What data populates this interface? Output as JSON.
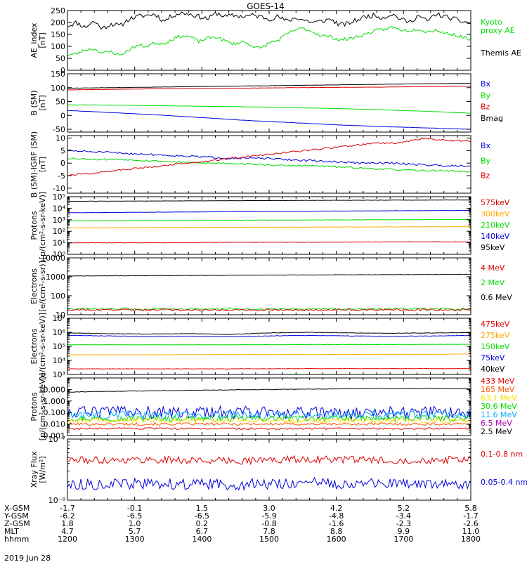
{
  "title": "GOES-14",
  "date_label": "2019 Jun 28",
  "chart_data": [
    {
      "id": "ae",
      "type": "line",
      "ylabel_lines": [
        "AE_index",
        "[nT]"
      ],
      "ylim": [
        0,
        250
      ],
      "log": false,
      "ticks": [
        0,
        50,
        100,
        150,
        200,
        250
      ],
      "tick_labels": [
        "0",
        "50",
        "100",
        "150",
        "200",
        "250"
      ],
      "legend": [
        {
          "label": "Kyoto",
          "color": "#00dd00"
        },
        {
          "label": "proxy AE",
          "color": "#00dd00"
        },
        {
          "label": "Themis AE",
          "color": "#000000"
        }
      ],
      "series": [
        {
          "color": "#000000",
          "noise": 10,
          "seed": 11,
          "values": [
            185,
            200,
            180,
            205,
            175,
            195,
            185,
            215,
            225,
            230,
            235,
            205,
            230,
            240,
            235,
            225,
            215,
            240,
            225,
            230,
            225,
            230,
            225,
            215,
            225,
            205,
            220,
            210,
            200,
            205,
            215,
            190,
            195,
            210,
            225,
            230,
            220,
            235,
            215,
            200,
            230,
            205,
            235,
            225,
            215,
            205,
            195
          ]
        },
        {
          "color": "#00dd00",
          "noise": 7,
          "seed": 23,
          "values": [
            65,
            68,
            85,
            90,
            72,
            78,
            62,
            85,
            105,
            100,
            115,
            112,
            130,
            145,
            140,
            120,
            135,
            140,
            122,
            110,
            120,
            105,
            90,
            115,
            125,
            150,
            170,
            175,
            160,
            145,
            140,
            128,
            130,
            140,
            150,
            165,
            170,
            180,
            170,
            165,
            175,
            160,
            170,
            155,
            150,
            140,
            130
          ]
        }
      ]
    },
    {
      "id": "bsm",
      "type": "line",
      "ylabel_lines": [
        "B (SM)",
        "[nT]"
      ],
      "ylim": [
        -60,
        150
      ],
      "log": false,
      "ticks": [
        -50,
        0,
        50,
        100,
        150
      ],
      "tick_labels": [
        "-50",
        "0",
        "50",
        "100",
        "150"
      ],
      "legend": [
        {
          "label": "Bx",
          "color": "#0000dd"
        },
        {
          "label": "By",
          "color": "#00dd00"
        },
        {
          "label": "Bz",
          "color": "#dd0000"
        },
        {
          "label": "Bmag",
          "color": "#000000"
        }
      ],
      "series": [
        {
          "color": "#000000",
          "noise": 0.4,
          "seed": 31,
          "values": [
            98,
            100,
            102,
            104,
            106,
            108,
            110,
            112,
            114,
            116
          ]
        },
        {
          "color": "#dd0000",
          "noise": 0.4,
          "seed": 37,
          "values": [
            92,
            94,
            96,
            97,
            98,
            100,
            101,
            102,
            104,
            105
          ]
        },
        {
          "color": "#00dd00",
          "noise": 0.4,
          "seed": 41,
          "values": [
            38,
            37,
            35,
            33,
            31,
            28,
            25,
            20,
            15,
            8
          ]
        },
        {
          "color": "#0000dd",
          "noise": 0.4,
          "seed": 43,
          "values": [
            18,
            10,
            2,
            -8,
            -18,
            -26,
            -34,
            -40,
            -45,
            -50
          ]
        }
      ]
    },
    {
      "id": "bigrf",
      "type": "line",
      "ylabel_lines": [
        "B (SM)-IGRF (SM)",
        "[nT]"
      ],
      "ylim": [
        -12,
        11
      ],
      "log": false,
      "ticks": [
        -10,
        -5,
        0,
        5,
        10
      ],
      "tick_labels": [
        "-10",
        "-5",
        "0",
        "5",
        "10"
      ],
      "legend": [
        {
          "label": "Bx",
          "color": "#0000dd"
        },
        {
          "label": "By",
          "color": "#00dd00"
        },
        {
          "label": "Bz",
          "color": "#dd0000"
        }
      ],
      "series": [
        {
          "color": "#0000dd",
          "noise": 0.4,
          "seed": 51,
          "values": [
            5,
            4.5,
            4,
            3.5,
            3,
            2.5,
            2,
            2,
            1.5,
            1,
            0.5,
            0,
            0,
            -0.5,
            -1,
            -1
          ]
        },
        {
          "color": "#00dd00",
          "noise": 0.35,
          "seed": 53,
          "values": [
            2,
            1.5,
            1.5,
            1,
            0.5,
            0,
            0,
            -0.5,
            -1,
            -1,
            -1.5,
            -2,
            -2.5,
            -3,
            -3,
            -3.5
          ]
        },
        {
          "color": "#dd0000",
          "noise": 0.35,
          "seed": 57,
          "values": [
            -5,
            -4,
            -3,
            -2,
            -1,
            0,
            1,
            2,
            3,
            4,
            5,
            6,
            7,
            8,
            8,
            10,
            9,
            9
          ]
        }
      ]
    },
    {
      "id": "protons_low",
      "type": "line",
      "ylabel_lines": [
        "Protons",
        "[p/(cm²-s-sr-keV)]"
      ],
      "ylim": [
        1,
        100000
      ],
      "log": true,
      "ticks": [
        1,
        10,
        100,
        1000,
        10000,
        100000
      ],
      "tick_labels": [
        "10⁰",
        "10¹",
        "10²",
        "10³",
        "10⁴",
        "10⁵"
      ],
      "legend": [
        {
          "label": "575keV",
          "color": "#dd0000"
        },
        {
          "label": "300keV",
          "color": "#ffaa00"
        },
        {
          "label": "210keV",
          "color": "#00dd00"
        },
        {
          "label": "140keV",
          "color": "#0000dd"
        },
        {
          "label": "95keV",
          "color": "#000000"
        }
      ],
      "series": [
        {
          "color": "#000000",
          "noise": 0.01,
          "seed": 61,
          "values": [
            40000,
            42000,
            45000,
            48000,
            50000,
            52000
          ]
        },
        {
          "color": "#0000dd",
          "noise": 0.01,
          "seed": 63,
          "values": [
            4000,
            4500,
            5000,
            5500,
            6000,
            6500
          ]
        },
        {
          "color": "#00dd00",
          "noise": 0.01,
          "seed": 65,
          "values": [
            800,
            850,
            900,
            950,
            1000,
            1050
          ]
        },
        {
          "color": "#ffaa00",
          "noise": 0.01,
          "seed": 67,
          "values": [
            200,
            210,
            220,
            230,
            240,
            250
          ]
        },
        {
          "color": "#dd0000",
          "noise": 0.02,
          "seed": 69,
          "values": [
            10,
            10,
            11,
            11,
            12,
            12
          ]
        }
      ]
    },
    {
      "id": "electrons_high",
      "type": "line",
      "ylabel_lines": [
        "Electrons",
        "[e/(cm²-s-sr)]"
      ],
      "ylim": [
        10,
        10000
      ],
      "log": true,
      "ticks": [
        10,
        100,
        1000,
        10000
      ],
      "tick_labels": [
        "10",
        "100",
        "1000",
        "10000"
      ],
      "legend": [
        {
          "label": "4 MeV",
          "color": "#dd0000"
        },
        {
          "label": "2 MeV",
          "color": "#00dd00"
        },
        {
          "label": "0.6 MeV",
          "color": "#000000"
        }
      ],
      "series": [
        {
          "color": "#000000",
          "noise": 0.01,
          "seed": 71,
          "values": [
            1100,
            1150,
            1200,
            1250,
            1300,
            1350
          ]
        },
        {
          "color": "#00dd00",
          "noise": 0.06,
          "seed": 73,
          "values": [
            20,
            20,
            20,
            20,
            20,
            20
          ]
        },
        {
          "color": "#dd0000",
          "noise": 0.06,
          "seed": 75,
          "values": [
            18,
            18,
            18,
            18,
            18,
            18
          ]
        }
      ]
    },
    {
      "id": "electrons_low",
      "type": "line",
      "ylabel_lines": [
        "Electrons",
        "[e/(cm²-s-sr-keV)]"
      ],
      "ylim": [
        1000,
        10000000
      ],
      "log": true,
      "ticks": [
        1000,
        10000,
        100000,
        1000000,
        10000000
      ],
      "tick_labels": [
        "10³",
        "10⁴",
        "10⁵",
        "10⁶",
        "10⁷"
      ],
      "legend": [
        {
          "label": "475keV",
          "color": "#dd0000"
        },
        {
          "label": "275keV",
          "color": "#ffaa00"
        },
        {
          "label": "150keV",
          "color": "#00dd00"
        },
        {
          "label": "75keV",
          "color": "#0000dd"
        },
        {
          "label": "40keV",
          "color": "#000000"
        }
      ],
      "series": [
        {
          "color": "#000000",
          "noise": 0.015,
          "seed": 81,
          "values": [
            900000,
            800000,
            750000,
            800000,
            700000,
            900000,
            1000000,
            900000,
            850000,
            900000,
            950000
          ]
        },
        {
          "color": "#0000dd",
          "noise": 0.015,
          "seed": 83,
          "values": [
            600000,
            550000,
            500000,
            520000,
            480000,
            550000,
            600000,
            550000,
            520000,
            550000,
            600000
          ]
        },
        {
          "color": "#00dd00",
          "noise": 0.01,
          "seed": 85,
          "values": [
            130000,
            130000,
            130000,
            135000,
            135000,
            140000
          ]
        },
        {
          "color": "#ffaa00",
          "noise": 0.01,
          "seed": 87,
          "values": [
            25000,
            25000,
            26000,
            26000,
            27000,
            28000
          ]
        },
        {
          "color": "#dd0000",
          "noise": 0.01,
          "seed": 89,
          "values": [
            2500,
            2500,
            2500,
            2600,
            2600,
            2600
          ]
        }
      ]
    },
    {
      "id": "protons_high",
      "type": "line",
      "ylabel_lines": [
        "Protons",
        "[p/(cm²-s-sr-keV)]"
      ],
      "ylim": [
        0.001,
        100
      ],
      "log": true,
      "ticks": [
        0.001,
        0.01,
        0.1,
        1,
        10
      ],
      "tick_labels": [
        "0.001",
        "0.010",
        "0.100",
        "1.000",
        "10.000"
      ],
      "legend": [
        {
          "label": "433 MeV",
          "color": "#dd0000"
        },
        {
          "label": "165 MeV",
          "color": "#ff5500"
        },
        {
          "label": "63.1 MeV",
          "color": "#ffdd00"
        },
        {
          "label": "30.6 MeV",
          "color": "#00dd00"
        },
        {
          "label": "11.6 MeV",
          "color": "#00aaff"
        },
        {
          "label": "6.5 MeV",
          "color": "#aa00aa"
        },
        {
          "label": "2.5 MeV",
          "color": "#000000"
        }
      ],
      "series": [
        {
          "color": "#000000",
          "noise": 0.02,
          "seed": 91,
          "values": [
            6,
            7,
            8,
            9,
            10,
            11,
            12,
            12,
            12
          ]
        },
        {
          "color": "#0000dd",
          "noise": 0.55,
          "seed": 93,
          "values": [
            0.1,
            0.1,
            0.1,
            0.1,
            0.1,
            0.1
          ]
        },
        {
          "color": "#00aaff",
          "noise": 0.35,
          "seed": 95,
          "values": [
            0.06,
            0.06,
            0.06,
            0.06,
            0.06,
            0.06
          ]
        },
        {
          "color": "#00dd00",
          "noise": 0.25,
          "seed": 97,
          "values": [
            0.03,
            0.03,
            0.03,
            0.03,
            0.03,
            0.03
          ]
        },
        {
          "color": "#ffdd00",
          "noise": 0.2,
          "seed": 99,
          "values": [
            0.02,
            0.02,
            0.02,
            0.02,
            0.02,
            0.02
          ]
        },
        {
          "color": "#ff5500",
          "noise": 0.12,
          "seed": 101,
          "values": [
            0.01,
            0.01,
            0.01,
            0.01,
            0.01,
            0.01
          ]
        },
        {
          "color": "#dd0000",
          "noise": 0.08,
          "seed": 103,
          "values": [
            0.004,
            0.004,
            0.004,
            0.004,
            0.004,
            0.004
          ]
        }
      ]
    },
    {
      "id": "xray",
      "type": "line",
      "ylabel_lines": [
        "Xray Flux",
        "[W/m²]"
      ],
      "ylim": [
        1e-08,
        1e-07
      ],
      "log": true,
      "ticks": [
        1e-08,
        1e-07
      ],
      "tick_labels": [
        "10⁻⁸",
        "10⁻⁷"
      ],
      "legend": [
        {
          "label": "0.1-0.8 nm",
          "color": "#dd0000"
        },
        {
          "label": "0.05-0.4 nm",
          "color": "#0000dd"
        }
      ],
      "series": [
        {
          "color": "#dd0000",
          "noise": 0.06,
          "seed": 111,
          "values": [
            4.5e-08,
            4.6e-08,
            4.4e-08,
            4.7e-08,
            4.5e-08,
            4.6e-08
          ]
        },
        {
          "color": "#0000dd",
          "noise": 0.09,
          "seed": 113,
          "values": [
            1.8e-08,
            1.85e-08,
            1.8e-08,
            1.9e-08,
            1.85e-08,
            1.8e-08
          ]
        }
      ]
    }
  ],
  "x_axis": {
    "rows": [
      {
        "label": "X-GSM",
        "values": [
          "-1.7",
          "-0.1",
          "1.5",
          "3.0",
          "4.2",
          "5.2",
          "5.8"
        ]
      },
      {
        "label": "Y-GSM",
        "values": [
          "-6.2",
          "-6.5",
          "-6.5",
          "-5.9",
          "-4.8",
          "-3.4",
          "-1.7"
        ]
      },
      {
        "label": "Z-GSM",
        "values": [
          "1.8",
          "1.0",
          "0.2",
          "-0.8",
          "-1.6",
          "-2.3",
          "-2.6"
        ]
      },
      {
        "label": "MLT",
        "values": [
          "4.7",
          "5.7",
          "6.7",
          "7.8",
          "8.8",
          "9.9",
          "11.0"
        ]
      },
      {
        "label": "hhmm",
        "values": [
          "1200",
          "1300",
          "1400",
          "1500",
          "1600",
          "1700",
          "1800"
        ]
      }
    ]
  }
}
